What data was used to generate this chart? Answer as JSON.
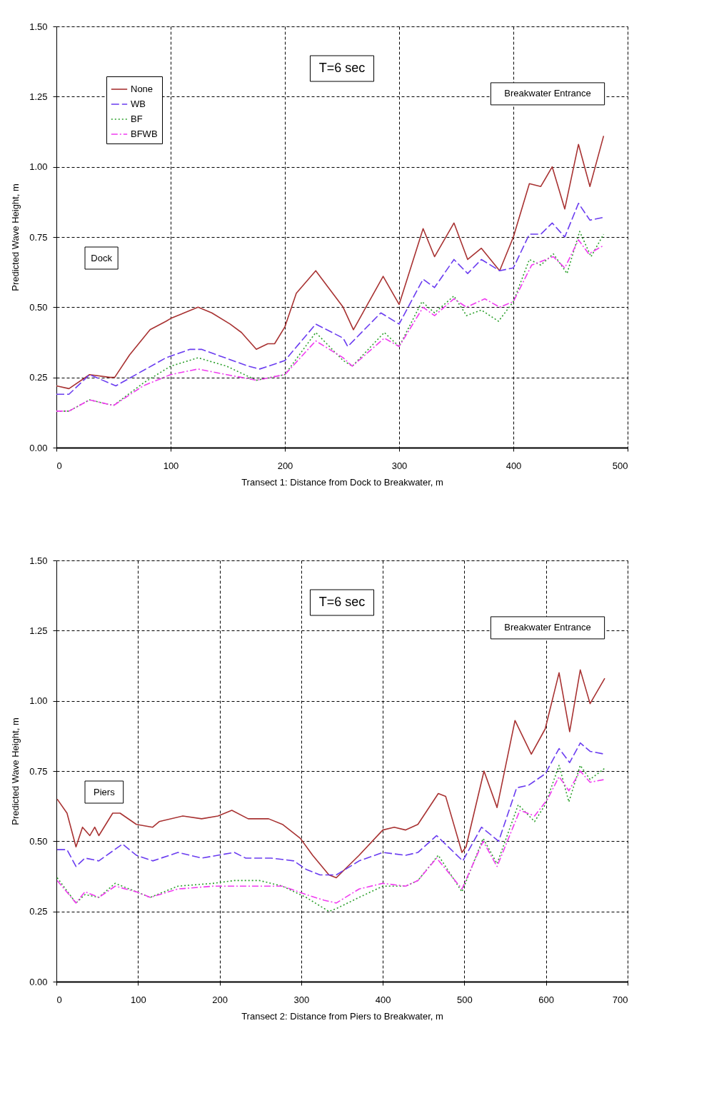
{
  "chart_data": [
    {
      "type": "line",
      "xlabel": "Transect 1: Distance from Dock to Breakwater, m",
      "ylabel": "Predicted Wave Height, m",
      "xlim": [
        0,
        500
      ],
      "xticks": [
        0,
        100,
        200,
        300,
        400,
        500
      ],
      "ylim": [
        0,
        1.5
      ],
      "yticks": [
        {
          "value": 0,
          "label": "0.00"
        },
        {
          "value": 0.25,
          "label": "0.25"
        },
        {
          "value": 0.5,
          "label": "0.50"
        },
        {
          "value": 0.75,
          "label": "0.75"
        },
        {
          "value": 1.0,
          "label": "1.00"
        },
        {
          "value": 1.25,
          "label": "1.25"
        },
        {
          "value": 1.5,
          "label": "1.50"
        }
      ],
      "grid": true,
      "legend": "top left",
      "annotations": [
        "T=6 sec",
        "Breakwater Entrance",
        "Dock"
      ],
      "series": [
        {
          "name": "None",
          "color": "#a83232",
          "line_style": "solid",
          "x": [
            0,
            11,
            29,
            47,
            51,
            64,
            82,
            96,
            100,
            124,
            136,
            152,
            162,
            175,
            185,
            191,
            200,
            210,
            227,
            251,
            260,
            286,
            300,
            321,
            331,
            348,
            360,
            372,
            388,
            400,
            414,
            424,
            434,
            445,
            457,
            467,
            479
          ],
          "values": [
            0.22,
            0.21,
            0.26,
            0.25,
            0.25,
            0.33,
            0.42,
            0.45,
            0.46,
            0.5,
            0.48,
            0.44,
            0.41,
            0.35,
            0.37,
            0.37,
            0.43,
            0.55,
            0.63,
            0.5,
            0.42,
            0.61,
            0.51,
            0.78,
            0.68,
            0.8,
            0.67,
            0.71,
            0.63,
            0.75,
            0.94,
            0.93,
            1.0,
            0.85,
            1.08,
            0.93,
            1.11
          ]
        },
        {
          "name": "WB",
          "color": "#6a3cf0",
          "line_style": "dashed",
          "x": [
            0,
            11,
            29,
            52,
            96,
            117,
            127,
            168,
            178,
            200,
            227,
            251,
            255,
            284,
            300,
            321,
            331,
            348,
            360,
            372,
            388,
            400,
            414,
            424,
            434,
            445,
            457,
            467,
            479
          ],
          "values": [
            0.19,
            0.19,
            0.26,
            0.22,
            0.32,
            0.35,
            0.35,
            0.29,
            0.28,
            0.31,
            0.44,
            0.39,
            0.36,
            0.48,
            0.44,
            0.6,
            0.57,
            0.67,
            0.62,
            0.67,
            0.63,
            0.64,
            0.76,
            0.76,
            0.8,
            0.75,
            0.87,
            0.81,
            0.82
          ]
        },
        {
          "name": "BF",
          "color": "#2ca02c",
          "line_style": "dotted",
          "x": [
            0,
            11,
            29,
            50,
            76,
            100,
            124,
            149,
            175,
            200,
            227,
            251,
            259,
            287,
            300,
            320,
            331,
            348,
            359,
            372,
            387,
            400,
            414,
            424,
            435,
            447,
            458,
            468,
            479
          ],
          "values": [
            0.13,
            0.13,
            0.17,
            0.15,
            0.23,
            0.29,
            0.32,
            0.29,
            0.24,
            0.26,
            0.41,
            0.31,
            0.29,
            0.41,
            0.36,
            0.52,
            0.48,
            0.54,
            0.47,
            0.49,
            0.45,
            0.52,
            0.67,
            0.65,
            0.69,
            0.62,
            0.77,
            0.68,
            0.76
          ]
        },
        {
          "name": "BFWB",
          "color": "#f03cf0",
          "line_style": "dashdot",
          "x": [
            0,
            11,
            29,
            50,
            76,
            100,
            124,
            149,
            175,
            200,
            227,
            251,
            259,
            287,
            300,
            321,
            331,
            348,
            359,
            375,
            388,
            400,
            416,
            435,
            445,
            457,
            466,
            479
          ],
          "values": [
            0.13,
            0.13,
            0.17,
            0.15,
            0.22,
            0.26,
            0.28,
            0.26,
            0.24,
            0.26,
            0.38,
            0.32,
            0.29,
            0.39,
            0.36,
            0.5,
            0.47,
            0.53,
            0.5,
            0.53,
            0.5,
            0.52,
            0.65,
            0.68,
            0.64,
            0.74,
            0.69,
            0.72
          ]
        }
      ]
    },
    {
      "type": "line",
      "xlabel": "Transect 2: Distance from Piers to Breakwater, m",
      "ylabel": "Predicted Wave Height, m",
      "xlim": [
        0,
        700
      ],
      "xticks": [
        0,
        100,
        200,
        300,
        400,
        500,
        600,
        700
      ],
      "ylim": [
        0,
        1.5
      ],
      "yticks": [
        {
          "value": 0,
          "label": "0.00"
        },
        {
          "value": 0.25,
          "label": "0.25"
        },
        {
          "value": 0.5,
          "label": "0.50"
        },
        {
          "value": 0.75,
          "label": "0.75"
        },
        {
          "value": 1.0,
          "label": "1.00"
        },
        {
          "value": 1.25,
          "label": "1.25"
        },
        {
          "value": 1.5,
          "label": "1.50"
        }
      ],
      "grid": true,
      "legend": "top left",
      "annotations": [
        "T=6 sec",
        "Breakwater Entrance",
        "Piers"
      ],
      "series": [
        {
          "name": "None",
          "color": "#a83232",
          "line_style": "solid",
          "x": [
            1,
            13,
            24,
            32,
            41,
            47,
            52,
            69,
            78,
            98,
            118,
            126,
            155,
            178,
            198,
            215,
            235,
            260,
            277,
            299,
            314,
            334,
            343,
            371,
            400,
            414,
            428,
            443,
            468,
            477,
            497,
            502,
            524,
            540,
            562,
            582,
            599,
            616,
            629,
            642,
            654,
            672
          ],
          "values": [
            0.65,
            0.6,
            0.48,
            0.55,
            0.52,
            0.55,
            0.52,
            0.6,
            0.6,
            0.56,
            0.55,
            0.57,
            0.59,
            0.58,
            0.59,
            0.61,
            0.58,
            0.58,
            0.56,
            0.51,
            0.45,
            0.38,
            0.37,
            0.45,
            0.54,
            0.55,
            0.54,
            0.56,
            0.67,
            0.66,
            0.46,
            0.48,
            0.75,
            0.62,
            0.93,
            0.81,
            0.9,
            1.1,
            0.89,
            1.11,
            0.99,
            1.08
          ]
        },
        {
          "name": "WB",
          "color": "#6a3cf0",
          "line_style": "dashed",
          "x": [
            1,
            13,
            24,
            35,
            52,
            81,
            98,
            118,
            149,
            178,
            218,
            232,
            263,
            291,
            306,
            323,
            343,
            371,
            400,
            428,
            443,
            466,
            498,
            521,
            542,
            564,
            579,
            599,
            616,
            629,
            642,
            654,
            672
          ],
          "values": [
            0.47,
            0.47,
            0.41,
            0.44,
            0.43,
            0.49,
            0.45,
            0.43,
            0.46,
            0.44,
            0.46,
            0.44,
            0.44,
            0.43,
            0.4,
            0.38,
            0.38,
            0.43,
            0.46,
            0.45,
            0.46,
            0.52,
            0.43,
            0.55,
            0.5,
            0.69,
            0.7,
            0.74,
            0.83,
            0.78,
            0.85,
            0.82,
            0.81
          ]
        },
        {
          "name": "BF",
          "color": "#2ca02c",
          "line_style": "dotted",
          "x": [
            1,
            24,
            35,
            52,
            72,
            98,
            115,
            149,
            192,
            218,
            249,
            277,
            306,
            334,
            343,
            371,
            400,
            428,
            443,
            468,
            497,
            523,
            540,
            566,
            586,
            599,
            616,
            628,
            642,
            654,
            672
          ],
          "values": [
            0.37,
            0.28,
            0.31,
            0.3,
            0.35,
            0.32,
            0.3,
            0.34,
            0.35,
            0.36,
            0.36,
            0.34,
            0.3,
            0.25,
            0.26,
            0.3,
            0.34,
            0.34,
            0.36,
            0.45,
            0.32,
            0.51,
            0.42,
            0.63,
            0.57,
            0.63,
            0.77,
            0.64,
            0.77,
            0.72,
            0.76
          ]
        },
        {
          "name": "BFWB",
          "color": "#f03cf0",
          "line_style": "dashdot",
          "x": [
            1,
            24,
            35,
            52,
            72,
            98,
            115,
            149,
            192,
            218,
            249,
            277,
            306,
            328,
            343,
            371,
            400,
            428,
            443,
            466,
            497,
            523,
            540,
            568,
            586,
            602,
            616,
            628,
            642,
            654,
            672
          ],
          "values": [
            0.36,
            0.28,
            0.32,
            0.3,
            0.34,
            0.32,
            0.3,
            0.33,
            0.34,
            0.34,
            0.34,
            0.34,
            0.31,
            0.29,
            0.28,
            0.33,
            0.35,
            0.34,
            0.36,
            0.44,
            0.33,
            0.5,
            0.41,
            0.61,
            0.59,
            0.65,
            0.73,
            0.68,
            0.75,
            0.71,
            0.72
          ]
        }
      ]
    }
  ]
}
